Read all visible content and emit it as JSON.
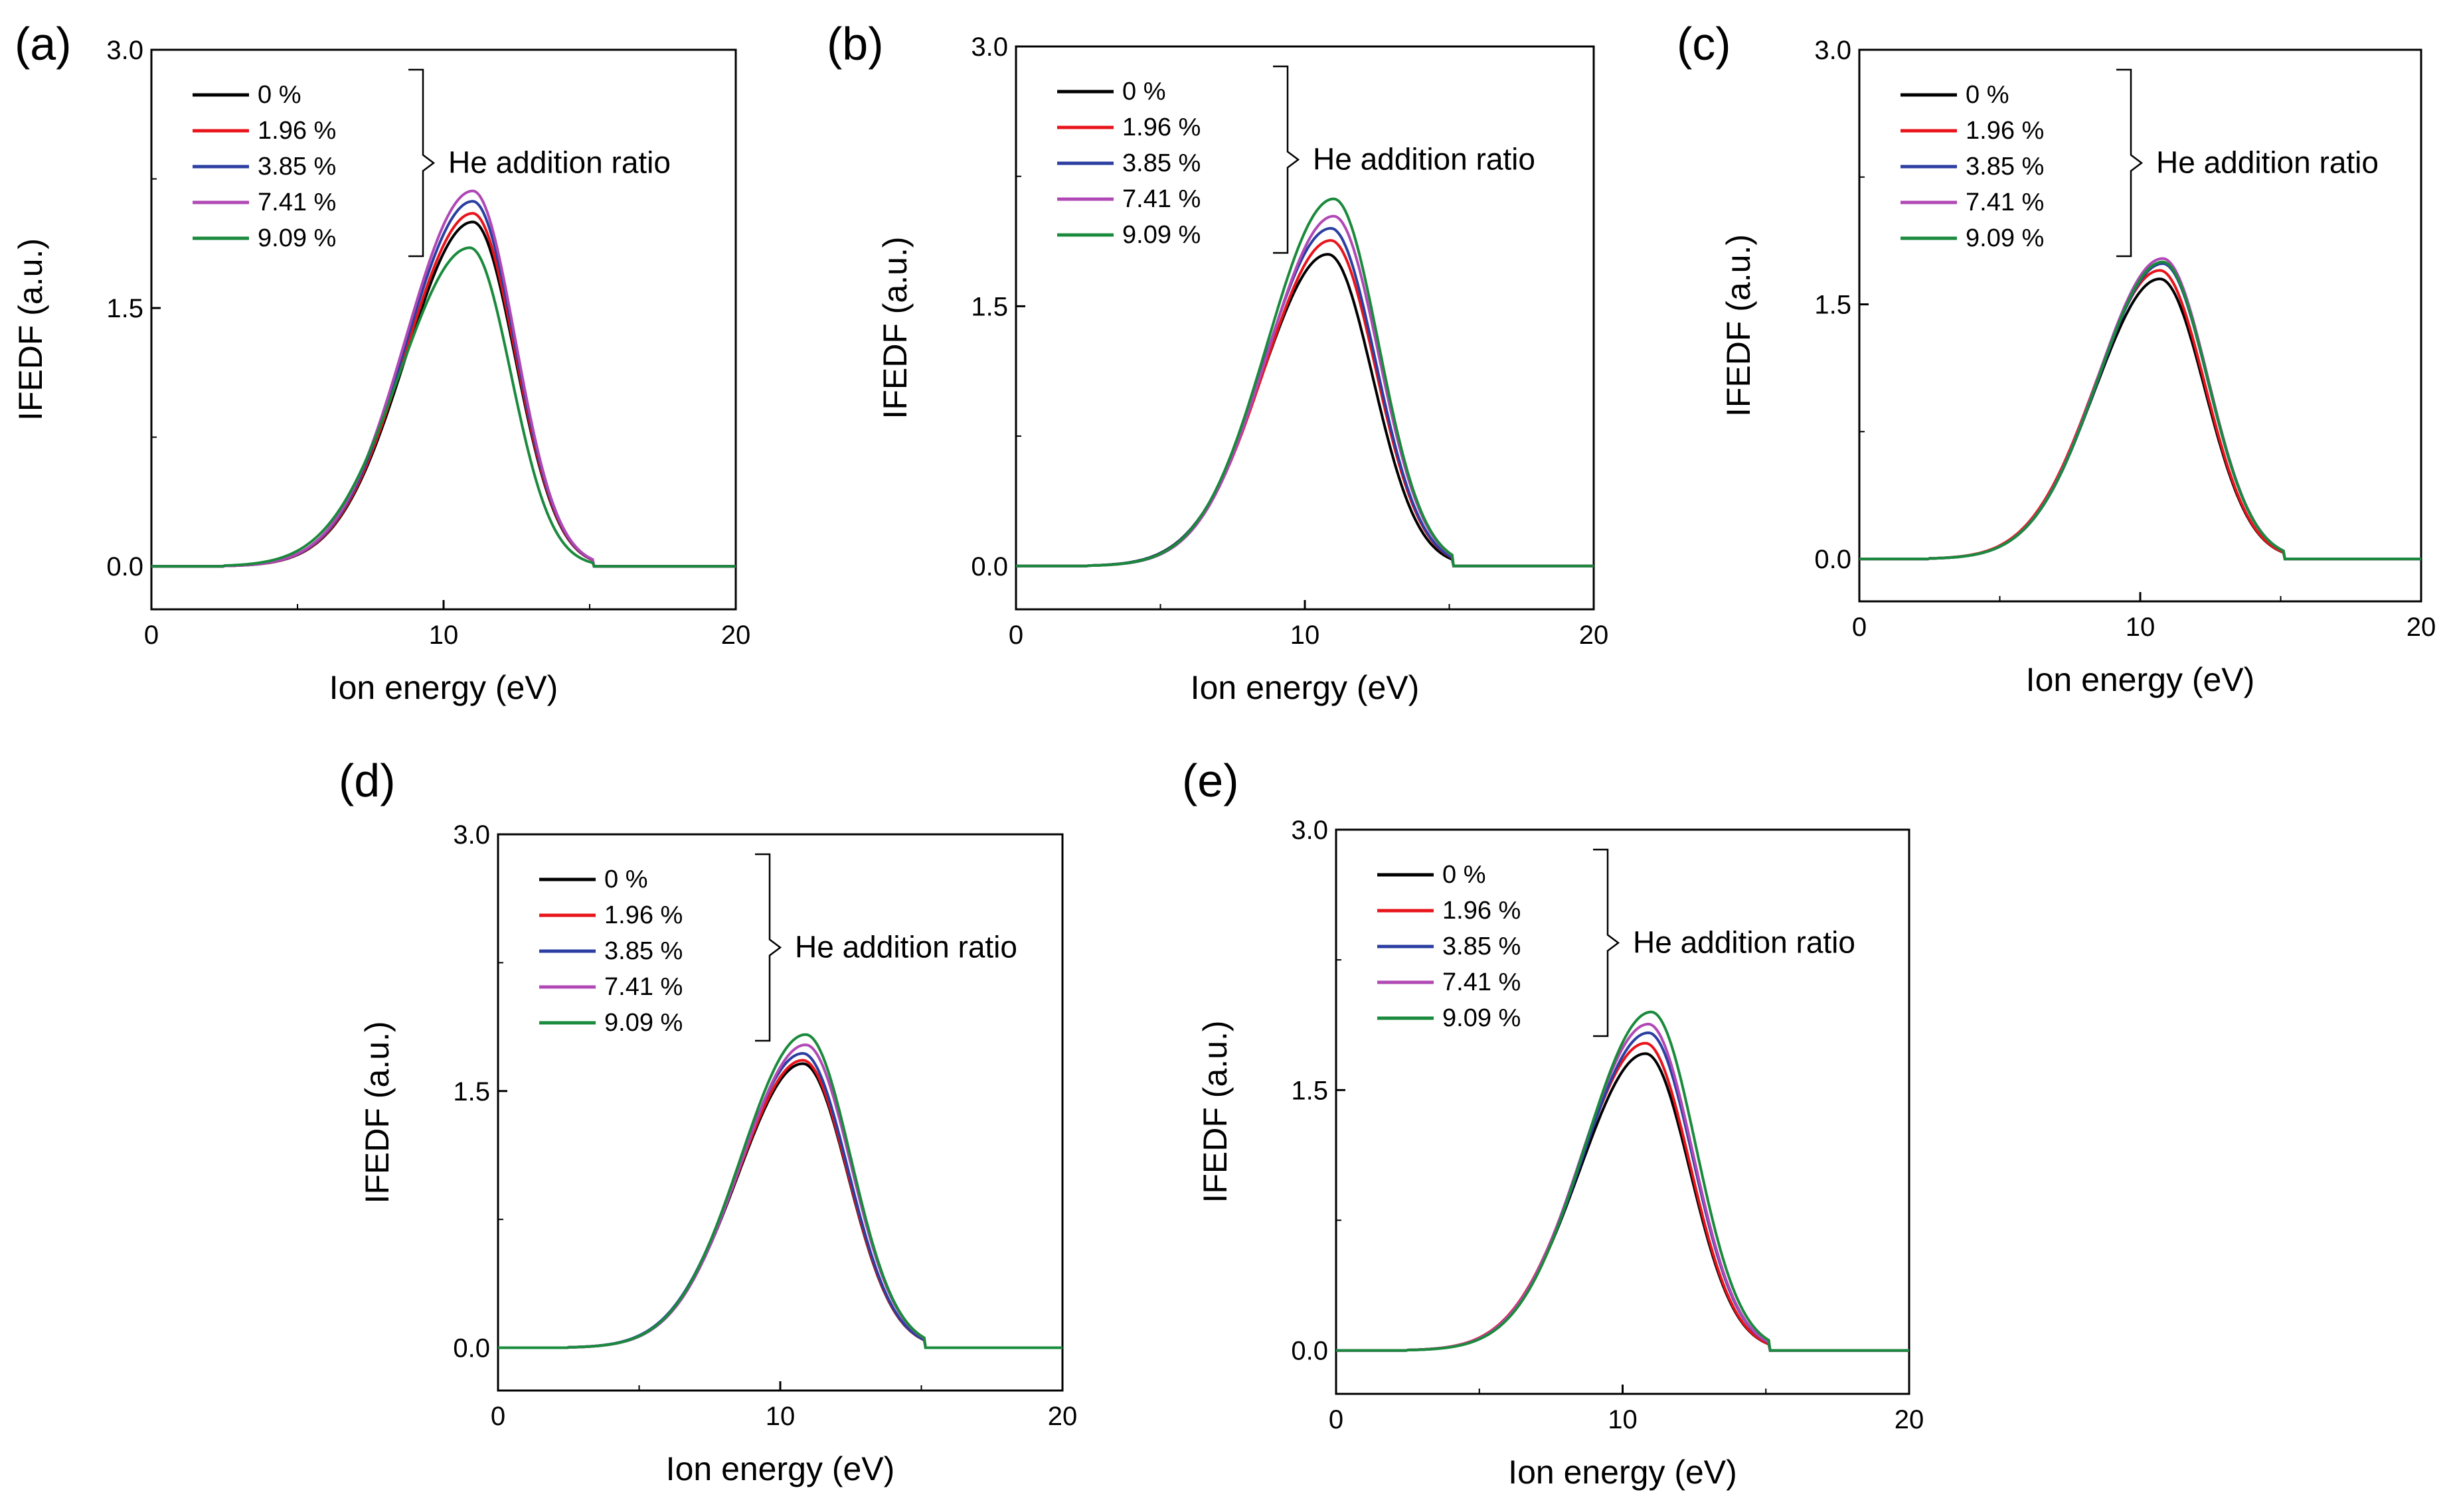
{
  "figure": {
    "description_note": "Five IFEDF panels (a)-(e) comparing He addition ratios"
  },
  "chart_data": [
    {
      "panel": "(a)",
      "type": "line",
      "xlabel": "Ion energy (eV)",
      "ylabel": "IFEDF (a.u.)",
      "xlim": [
        0,
        20
      ],
      "ylim": [
        -0.25,
        3.0
      ],
      "xticks": [
        "0",
        "10",
        "20"
      ],
      "yticks": [
        "0.0",
        "1.5",
        "3.0"
      ],
      "annotation": "He addition ratio",
      "series": [
        {
          "name": "0 %",
          "color": "#000000",
          "peak": 2.0,
          "center": 11.0,
          "sigma_left": 2.3,
          "sigma_right": 1.45
        },
        {
          "name": "1.96 %",
          "color": "#e8141b",
          "peak": 2.05,
          "center": 11.0,
          "sigma_left": 2.3,
          "sigma_right": 1.45
        },
        {
          "name": "3.85 %",
          "color": "#2b3ea1",
          "peak": 2.12,
          "center": 11.0,
          "sigma_left": 2.3,
          "sigma_right": 1.45
        },
        {
          "name": "7.41 %",
          "color": "#b048b5",
          "peak": 2.18,
          "center": 11.0,
          "sigma_left": 2.3,
          "sigma_right": 1.45
        },
        {
          "name": "9.09 %",
          "color": "#1a8a3c",
          "peak": 1.85,
          "center": 10.9,
          "sigma_left": 2.4,
          "sigma_right": 1.4
        }
      ]
    },
    {
      "panel": "(b)",
      "type": "line",
      "xlabel": "Ion energy (eV)",
      "ylabel": "IFEDF (a.u.)",
      "xlim": [
        0,
        20
      ],
      "ylim": [
        -0.25,
        3.0
      ],
      "xticks": [
        "0",
        "10",
        "20"
      ],
      "yticks": [
        "0.0",
        "1.5",
        "3.0"
      ],
      "annotation": "He addition ratio",
      "series": [
        {
          "name": "0 %",
          "color": "#000000",
          "peak": 1.8,
          "center": 10.8,
          "sigma_left": 2.3,
          "sigma_right": 1.55
        },
        {
          "name": "1.96 %",
          "color": "#e8141b",
          "peak": 1.88,
          "center": 10.9,
          "sigma_left": 2.3,
          "sigma_right": 1.55
        },
        {
          "name": "3.85 %",
          "color": "#2b3ea1",
          "peak": 1.95,
          "center": 10.9,
          "sigma_left": 2.3,
          "sigma_right": 1.55
        },
        {
          "name": "7.41 %",
          "color": "#b048b5",
          "peak": 2.02,
          "center": 11.0,
          "sigma_left": 2.3,
          "sigma_right": 1.55
        },
        {
          "name": "9.09 %",
          "color": "#1a8a3c",
          "peak": 2.12,
          "center": 11.0,
          "sigma_left": 2.3,
          "sigma_right": 1.55
        }
      ]
    },
    {
      "panel": "(c)",
      "type": "line",
      "xlabel": "Ion energy (eV)",
      "ylabel": "IFEDF (a.u.)",
      "xlim": [
        0,
        20
      ],
      "ylim": [
        -0.25,
        3.0
      ],
      "xticks": [
        "0",
        "10",
        "20"
      ],
      "yticks": [
        "0.0",
        "1.5",
        "3.0"
      ],
      "annotation": "He addition ratio",
      "series": [
        {
          "name": "0 %",
          "color": "#000000",
          "peak": 1.65,
          "center": 10.7,
          "sigma_left": 2.3,
          "sigma_right": 1.6
        },
        {
          "name": "1.96 %",
          "color": "#e8141b",
          "peak": 1.7,
          "center": 10.7,
          "sigma_left": 2.3,
          "sigma_right": 1.6
        },
        {
          "name": "3.85 %",
          "color": "#2b3ea1",
          "peak": 1.74,
          "center": 10.8,
          "sigma_left": 2.3,
          "sigma_right": 1.6
        },
        {
          "name": "7.41 %",
          "color": "#b048b5",
          "peak": 1.77,
          "center": 10.8,
          "sigma_left": 2.3,
          "sigma_right": 1.6
        },
        {
          "name": "9.09 %",
          "color": "#1a8a3c",
          "peak": 1.75,
          "center": 10.8,
          "sigma_left": 2.3,
          "sigma_right": 1.6
        }
      ]
    },
    {
      "panel": "(d)",
      "type": "line",
      "xlabel": "Ion energy (eV)",
      "ylabel": "IFEDF (a.u.)",
      "xlim": [
        0,
        20
      ],
      "ylim": [
        -0.25,
        3.0
      ],
      "xticks": [
        "0",
        "10",
        "20"
      ],
      "yticks": [
        "0.0",
        "1.5",
        "3.0"
      ],
      "annotation": "He addition ratio",
      "series": [
        {
          "name": "0 %",
          "color": "#000000",
          "peak": 1.66,
          "center": 10.8,
          "sigma_left": 2.3,
          "sigma_right": 1.6
        },
        {
          "name": "1.96 %",
          "color": "#e8141b",
          "peak": 1.68,
          "center": 10.8,
          "sigma_left": 2.3,
          "sigma_right": 1.6
        },
        {
          "name": "3.85 %",
          "color": "#2b3ea1",
          "peak": 1.72,
          "center": 10.8,
          "sigma_left": 2.3,
          "sigma_right": 1.6
        },
        {
          "name": "7.41 %",
          "color": "#b048b5",
          "peak": 1.77,
          "center": 10.9,
          "sigma_left": 2.3,
          "sigma_right": 1.6
        },
        {
          "name": "9.09 %",
          "color": "#1a8a3c",
          "peak": 1.83,
          "center": 10.9,
          "sigma_left": 2.3,
          "sigma_right": 1.6
        }
      ]
    },
    {
      "panel": "(e)",
      "type": "line",
      "xlabel": "Ion energy (eV)",
      "ylabel": "IFEDF (a.u.)",
      "xlim": [
        0,
        20
      ],
      "ylim": [
        -0.25,
        3.0
      ],
      "xticks": [
        "0",
        "10",
        "20"
      ],
      "yticks": [
        "0.0",
        "1.5",
        "3.0"
      ],
      "annotation": "He addition ratio",
      "series": [
        {
          "name": "0 %",
          "color": "#000000",
          "peak": 1.71,
          "center": 10.8,
          "sigma_left": 2.3,
          "sigma_right": 1.55
        },
        {
          "name": "1.96 %",
          "color": "#e8141b",
          "peak": 1.77,
          "center": 10.8,
          "sigma_left": 2.3,
          "sigma_right": 1.55
        },
        {
          "name": "3.85 %",
          "color": "#2b3ea1",
          "peak": 1.83,
          "center": 10.9,
          "sigma_left": 2.3,
          "sigma_right": 1.55
        },
        {
          "name": "7.41 %",
          "color": "#b048b5",
          "peak": 1.88,
          "center": 10.9,
          "sigma_left": 2.3,
          "sigma_right": 1.55
        },
        {
          "name": "9.09 %",
          "color": "#1a8a3c",
          "peak": 1.95,
          "center": 11.0,
          "sigma_left": 2.3,
          "sigma_right": 1.55
        }
      ]
    }
  ]
}
